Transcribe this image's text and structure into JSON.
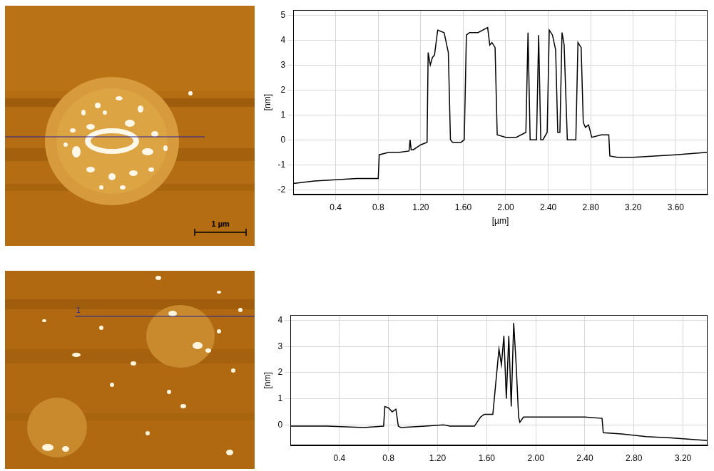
{
  "images": [
    {
      "scale_bar": "1 µm"
    },
    {
      "line_label": "1"
    }
  ],
  "chart_data": [
    {
      "type": "line",
      "y_label": "[nm]",
      "x_label": "[µm]",
      "color": "#000000",
      "grid": true,
      "x": [
        0,
        0.2,
        0.4,
        0.6,
        0.8,
        0.81,
        0.9,
        1.0,
        1.09,
        1.1,
        1.11,
        1.13,
        1.2,
        1.26,
        1.27,
        1.29,
        1.31,
        1.33,
        1.36,
        1.42,
        1.46,
        1.48,
        1.5,
        1.52,
        1.58,
        1.61,
        1.63,
        1.66,
        1.74,
        1.83,
        1.85,
        1.87,
        1.9,
        1.92,
        2.0,
        2.1,
        2.19,
        2.21,
        2.23,
        2.25,
        2.29,
        2.31,
        2.33,
        2.35,
        2.39,
        2.41,
        2.44,
        2.47,
        2.49,
        2.51,
        2.53,
        2.55,
        2.58,
        2.6,
        2.66,
        2.68,
        2.71,
        2.73,
        2.75,
        2.78,
        2.81,
        2.9,
        2.97,
        2.98,
        3.05,
        3.2,
        3.4,
        3.6,
        3.9
      ],
      "values": [
        -1.75,
        -1.65,
        -1.6,
        -1.55,
        -1.55,
        -0.6,
        -0.5,
        -0.5,
        -0.45,
        0.0,
        -0.4,
        -0.4,
        -0.2,
        -0.1,
        3.5,
        3.0,
        3.3,
        3.4,
        4.4,
        4.3,
        3.5,
        0.0,
        -0.1,
        -0.1,
        -0.1,
        0.0,
        4.2,
        4.3,
        4.3,
        4.5,
        3.8,
        3.9,
        3.7,
        0.2,
        0.1,
        0.1,
        0.3,
        4.3,
        0.0,
        0.0,
        0.0,
        4.2,
        0.0,
        0.0,
        0.3,
        4.4,
        4.2,
        3.6,
        0.3,
        0.3,
        4.3,
        3.8,
        0.0,
        0.0,
        0.0,
        3.9,
        3.7,
        0.7,
        0.5,
        0.6,
        0.1,
        0.2,
        0.2,
        -0.65,
        -0.7,
        -0.7,
        -0.65,
        -0.6,
        -0.5
      ],
      "xlim": [
        0,
        3.9
      ],
      "ylim": [
        -2.2,
        5.2
      ],
      "xticks": [
        0.4,
        0.8,
        {
          "value": 1.2,
          "label": "1.20"
        },
        {
          "value": 1.6,
          "label": "1.60"
        },
        {
          "value": 2.0,
          "label": "2.00"
        },
        {
          "value": 2.4,
          "label": "2.40"
        },
        {
          "value": 2.8,
          "label": "2.80"
        },
        {
          "value": 3.2,
          "label": "3.20"
        },
        {
          "value": 3.6,
          "label": "3.60"
        }
      ],
      "yticks": [
        -2,
        -1,
        0,
        1,
        2,
        3,
        4,
        5
      ]
    },
    {
      "type": "line",
      "y_label": "[nm]",
      "color": "#000000",
      "grid": true,
      "x": [
        0,
        0.3,
        0.6,
        0.76,
        0.77,
        0.8,
        0.83,
        0.86,
        0.88,
        0.9,
        1.1,
        1.25,
        1.3,
        1.5,
        1.55,
        1.58,
        1.65,
        1.7,
        1.72,
        1.74,
        1.76,
        1.78,
        1.8,
        1.82,
        1.84,
        1.86,
        1.87,
        1.9,
        2.0,
        2.2,
        2.4,
        2.54,
        2.55,
        2.7,
        2.9,
        3.1,
        3.4
      ],
      "values": [
        -0.05,
        -0.05,
        -0.1,
        -0.05,
        0.7,
        0.65,
        0.5,
        0.6,
        -0.05,
        -0.1,
        -0.05,
        0.0,
        -0.05,
        -0.05,
        0.3,
        0.4,
        0.4,
        2.9,
        2.3,
        3.4,
        1.0,
        3.4,
        0.7,
        3.9,
        2.3,
        0.3,
        0.1,
        0.3,
        0.3,
        0.3,
        0.3,
        0.25,
        -0.3,
        -0.35,
        -0.45,
        -0.5,
        -0.6
      ],
      "xlim": [
        0,
        3.4
      ],
      "ylim": [
        -0.8,
        4.2
      ],
      "xticks": [
        0.4,
        0.8,
        {
          "value": 1.2,
          "label": "1.20"
        },
        {
          "value": 1.6,
          "label": "1.60"
        },
        {
          "value": 2.0,
          "label": "2.00"
        },
        {
          "value": 2.4,
          "label": "2.40"
        },
        {
          "value": 2.8,
          "label": "2.80"
        },
        {
          "value": 3.2,
          "label": "3.20"
        }
      ],
      "yticks": [
        0,
        1,
        2,
        3,
        4
      ]
    }
  ]
}
